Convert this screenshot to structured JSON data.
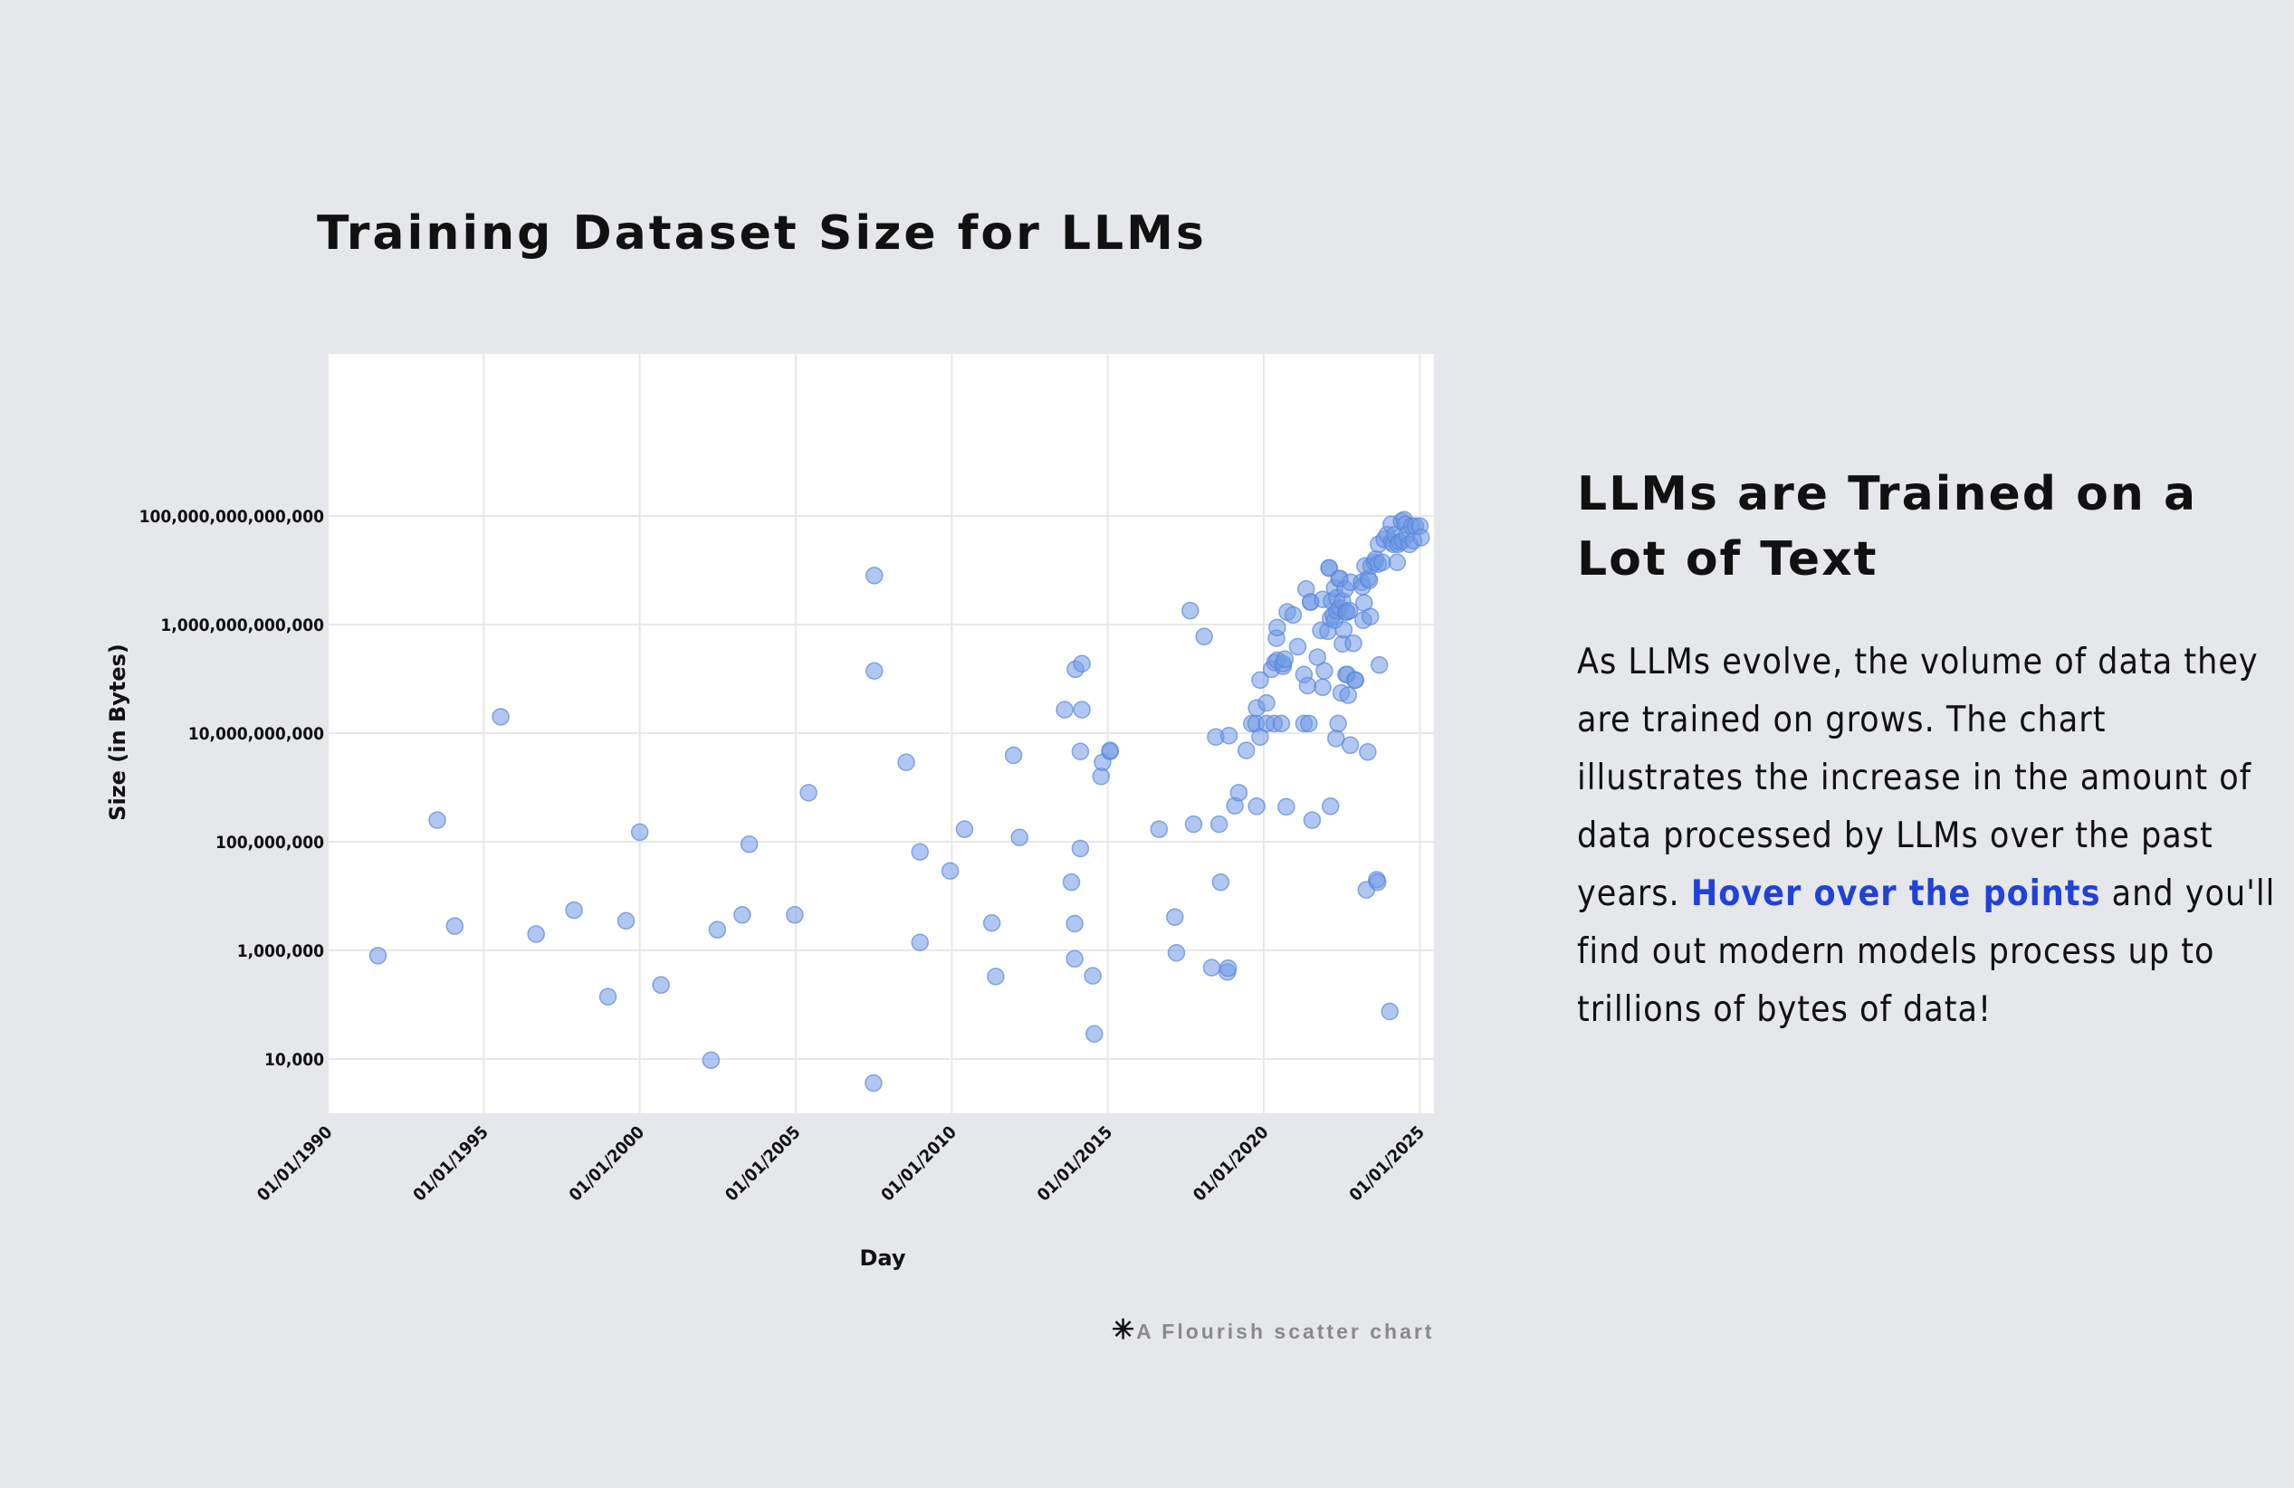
{
  "chart_data": {
    "type": "scatter",
    "title": "Training Dataset Size for LLMs",
    "xlabel": "Day",
    "ylabel": "Size (in Bytes)",
    "y_scale": "log",
    "ylim": [
      1000,
      100000000000000000
    ],
    "xlim": [
      "1990-01-01",
      "2025-06-15"
    ],
    "x_ticks": [
      "1990-01-01",
      "1995-01-01",
      "2000-01-01",
      "2005-01-01",
      "2010-01-01",
      "2015-01-01",
      "2020-01-01",
      "2025-01-01"
    ],
    "x_tick_labels": [
      "01/01/1990",
      "01/01/1995",
      "01/01/2000",
      "01/01/2005",
      "01/01/2010",
      "01/01/2015",
      "01/01/2020",
      "01/01/2025"
    ],
    "y_ticks": [
      10000,
      1000000,
      100000000,
      10000000000,
      1000000000000,
      100000000000000
    ],
    "y_tick_labels": [
      "10,000",
      "1,000,000",
      "100,000,000",
      "10,000,000,000",
      "1,000,000,000,000",
      "100,000,000,000,000"
    ],
    "grid": true,
    "point_color": "#6f9ae6",
    "points": [
      {
        "x": "1991-08-12",
        "y": 800000
      },
      {
        "x": "1993-07-06",
        "y": 250000000
      },
      {
        "x": "1994-01-27",
        "y": 2800000
      },
      {
        "x": "1995-07-19",
        "y": 20000000000
      },
      {
        "x": "1996-09-05",
        "y": 2000000
      },
      {
        "x": "1997-11-23",
        "y": 5500000
      },
      {
        "x": "1998-12-25",
        "y": 140000
      },
      {
        "x": "1999-07-25",
        "y": 3500000
      },
      {
        "x": "2000-01-01",
        "y": 150000000
      },
      {
        "x": "2000-09-06",
        "y": 230000
      },
      {
        "x": "2002-04-15",
        "y": 9500
      },
      {
        "x": "2002-06-28",
        "y": 2400000
      },
      {
        "x": "2003-04-15",
        "y": 4500000
      },
      {
        "x": "2003-07-06",
        "y": 90000000
      },
      {
        "x": "2004-12-20",
        "y": 4500000
      },
      {
        "x": "2005-05-30",
        "y": 800000000
      },
      {
        "x": "2007-06-30",
        "y": 3600
      },
      {
        "x": "2007-07-09",
        "y": 8000000000000
      },
      {
        "x": "2007-07-09",
        "y": 140000000000
      },
      {
        "x": "2008-07-17",
        "y": 2900000000
      },
      {
        "x": "2008-12-25",
        "y": 1400000
      },
      {
        "x": "2008-12-25",
        "y": 65000000
      },
      {
        "x": "2009-12-13",
        "y": 29000000
      },
      {
        "x": "2010-05-30",
        "y": 170000000
      },
      {
        "x": "2011-04-15",
        "y": 3200000
      },
      {
        "x": "2011-05-30",
        "y": 330000
      },
      {
        "x": "2011-12-25",
        "y": 3900000000
      },
      {
        "x": "2012-03-04",
        "y": 120000000
      },
      {
        "x": "2013-08-14",
        "y": 27000000000
      },
      {
        "x": "2013-11-01",
        "y": 18000000
      },
      {
        "x": "2013-12-09",
        "y": 700000
      },
      {
        "x": "2013-12-09",
        "y": 3100000
      },
      {
        "x": "2013-12-18",
        "y": 150000000000
      },
      {
        "x": "2014-02-14",
        "y": 75000000
      },
      {
        "x": "2014-02-14",
        "y": 4600000000
      },
      {
        "x": "2014-03-04",
        "y": 27000000000
      },
      {
        "x": "2014-03-04",
        "y": 190000000000
      },
      {
        "x": "2014-07-09",
        "y": 340000
      },
      {
        "x": "2014-07-27",
        "y": 29000
      },
      {
        "x": "2014-10-14",
        "y": 1600000000
      },
      {
        "x": "2014-11-01",
        "y": 2900000000
      },
      {
        "x": "2015-01-27",
        "y": 4600000000
      },
      {
        "x": "2015-01-27",
        "y": 4800000000
      },
      {
        "x": "2016-08-23",
        "y": 170000000
      },
      {
        "x": "2017-02-24",
        "y": 4100000
      },
      {
        "x": "2017-03-14",
        "y": 900000
      },
      {
        "x": "2017-08-23",
        "y": 1800000000000
      },
      {
        "x": "2017-10-01",
        "y": 210000000
      },
      {
        "x": "2018-02-02",
        "y": 600000000000
      },
      {
        "x": "2018-05-01",
        "y": 480000
      },
      {
        "x": "2018-06-18",
        "y": 8500000000
      },
      {
        "x": "2018-07-27",
        "y": 210000000
      },
      {
        "x": "2018-08-14",
        "y": 18000000
      },
      {
        "x": "2018-11-01",
        "y": 400000
      },
      {
        "x": "2018-11-10",
        "y": 470000
      },
      {
        "x": "2018-11-19",
        "y": 9000000000
      },
      {
        "x": "2019-01-27",
        "y": 460000000
      },
      {
        "x": "2019-03-14",
        "y": 800000000
      },
      {
        "x": "2019-06-10",
        "y": 4800000000
      },
      {
        "x": "2019-08-14",
        "y": 15000000000
      },
      {
        "x": "2019-10-01",
        "y": 15000000000
      },
      {
        "x": "2019-10-10",
        "y": 450000000
      },
      {
        "x": "2019-10-10",
        "y": 29000000000
      },
      {
        "x": "2019-11-19",
        "y": 8500000000
      },
      {
        "x": "2019-11-19",
        "y": 95000000000
      },
      {
        "x": "2020-02-02",
        "y": 36000000000
      },
      {
        "x": "2020-02-02",
        "y": 15000000000
      },
      {
        "x": "2020-03-31",
        "y": 150000000000
      },
      {
        "x": "2020-05-01",
        "y": 15000000000
      },
      {
        "x": "2020-05-10",
        "y": 200000000000
      },
      {
        "x": "2020-05-28",
        "y": 560000000000
      },
      {
        "x": "2020-06-06",
        "y": 220000000000
      },
      {
        "x": "2020-06-06",
        "y": 880000000000
      },
      {
        "x": "2020-07-24",
        "y": 15000000000
      },
      {
        "x": "2020-08-14",
        "y": 170000000000
      },
      {
        "x": "2020-08-14",
        "y": 190000000000
      },
      {
        "x": "2020-09-04",
        "y": 230000000000
      },
      {
        "x": "2020-09-20",
        "y": 440000000
      },
      {
        "x": "2020-10-02",
        "y": 1700000000000
      },
      {
        "x": "2020-12-10",
        "y": 1500000000000
      },
      {
        "x": "2021-02-01",
        "y": 390000000000
      },
      {
        "x": "2021-04-15",
        "y": 15000000000
      },
      {
        "x": "2021-04-15",
        "y": 120000000000
      },
      {
        "x": "2021-05-10",
        "y": 4500000000000
      },
      {
        "x": "2021-05-28",
        "y": 75000000000
      },
      {
        "x": "2021-06-12",
        "y": 15000000000
      },
      {
        "x": "2021-07-02",
        "y": 2600000000000
      },
      {
        "x": "2021-07-02",
        "y": 2600000000000
      },
      {
        "x": "2021-07-20",
        "y": 250000000
      },
      {
        "x": "2021-09-20",
        "y": 250000000000
      },
      {
        "x": "2021-10-30",
        "y": 780000000000
      },
      {
        "x": "2021-11-20",
        "y": 2900000000000
      },
      {
        "x": "2021-11-20",
        "y": 70000000000
      },
      {
        "x": "2021-12-10",
        "y": 140000000000
      },
      {
        "x": "2022-01-20",
        "y": 750000000000
      },
      {
        "x": "2022-02-03",
        "y": 11000000000000
      },
      {
        "x": "2022-02-03",
        "y": 11000000000000
      },
      {
        "x": "2022-02-20",
        "y": 450000000
      },
      {
        "x": "2022-02-20",
        "y": 1300000000000
      },
      {
        "x": "2022-03-05",
        "y": 2700000000000
      },
      {
        "x": "2022-03-25",
        "y": 1500000000000
      },
      {
        "x": "2022-04-10",
        "y": 4700000000000
      },
      {
        "x": "2022-04-10",
        "y": 1200000000000
      },
      {
        "x": "2022-04-25",
        "y": 8000000000
      },
      {
        "x": "2022-05-05",
        "y": 3100000000000
      },
      {
        "x": "2022-05-05",
        "y": 1800000000000
      },
      {
        "x": "2022-05-20",
        "y": 15000000000
      },
      {
        "x": "2022-05-30",
        "y": 7000000000000
      },
      {
        "x": "2022-06-10",
        "y": 7000000000000
      },
      {
        "x": "2022-06-10",
        "y": 2000000000000
      },
      {
        "x": "2022-06-25",
        "y": 55000000000
      },
      {
        "x": "2022-07-10",
        "y": 2700000000000
      },
      {
        "x": "2022-07-10",
        "y": 440000000000
      },
      {
        "x": "2022-07-25",
        "y": 800000000000
      },
      {
        "x": "2022-08-10",
        "y": 4500000000000
      },
      {
        "x": "2022-08-20",
        "y": 1700000000000
      },
      {
        "x": "2022-08-20",
        "y": 120000000000
      },
      {
        "x": "2022-09-01",
        "y": 1700000000000
      },
      {
        "x": "2022-09-05",
        "y": 120000000000
      },
      {
        "x": "2022-09-15",
        "y": 50000000000
      },
      {
        "x": "2022-10-01",
        "y": 1800000000000
      },
      {
        "x": "2022-10-10",
        "y": 6000000000
      },
      {
        "x": "2022-10-15",
        "y": 6000000000000
      },
      {
        "x": "2022-11-15",
        "y": 450000000000
      },
      {
        "x": "2022-12-01",
        "y": 95000000000
      },
      {
        "x": "2022-12-10",
        "y": 95000000000
      },
      {
        "x": "2023-02-20",
        "y": 6000000000000
      },
      {
        "x": "2023-03-01",
        "y": 5000000000000
      },
      {
        "x": "2023-03-10",
        "y": 1200000000000
      },
      {
        "x": "2023-03-20",
        "y": 2500000000000
      },
      {
        "x": "2023-04-01",
        "y": 12000000000000
      },
      {
        "x": "2023-04-15",
        "y": 13000000
      },
      {
        "x": "2023-05-01",
        "y": 4500000000
      },
      {
        "x": "2023-05-05",
        "y": 7000000000000
      },
      {
        "x": "2023-05-20",
        "y": 6500000000000
      },
      {
        "x": "2023-06-01",
        "y": 1400000000000
      },
      {
        "x": "2023-06-10",
        "y": 12000000000000
      },
      {
        "x": "2023-07-20",
        "y": 14000000000000
      },
      {
        "x": "2023-08-01",
        "y": 16000000000000
      },
      {
        "x": "2023-08-15",
        "y": 20000000
      },
      {
        "x": "2023-08-25",
        "y": 18000000
      },
      {
        "x": "2023-09-01",
        "y": 13000000000000
      },
      {
        "x": "2023-09-05",
        "y": 30000000000000
      },
      {
        "x": "2023-09-15",
        "y": 180000000000
      },
      {
        "x": "2023-10-20",
        "y": 14000000000000
      },
      {
        "x": "2023-11-10",
        "y": 37000000000000
      },
      {
        "x": "2023-12-15",
        "y": 45000000000000
      },
      {
        "x": "2024-01-15",
        "y": 75000
      },
      {
        "x": "2024-02-01",
        "y": 70000000000000
      },
      {
        "x": "2024-02-05",
        "y": 33000000000000
      },
      {
        "x": "2024-02-25",
        "y": 30000000000000
      },
      {
        "x": "2024-03-15",
        "y": 45000000000000
      },
      {
        "x": "2024-04-10",
        "y": 14000000000000
      },
      {
        "x": "2024-04-20",
        "y": 30000000000000
      },
      {
        "x": "2024-05-10",
        "y": 33000000000000
      },
      {
        "x": "2024-06-01",
        "y": 80000000000000
      },
      {
        "x": "2024-06-15",
        "y": 35000000000000
      },
      {
        "x": "2024-07-01",
        "y": 85000000000000
      },
      {
        "x": "2024-07-15",
        "y": 70000000000000
      },
      {
        "x": "2024-08-01",
        "y": 45000000000000
      },
      {
        "x": "2024-09-01",
        "y": 30000000000000
      },
      {
        "x": "2024-10-01",
        "y": 65000000000000
      },
      {
        "x": "2024-10-20",
        "y": 35000000000000
      },
      {
        "x": "2024-11-10",
        "y": 65000000000000
      },
      {
        "x": "2025-01-01",
        "y": 65000000000000
      },
      {
        "x": "2025-01-15",
        "y": 40000000000000
      }
    ]
  },
  "side_panel": {
    "heading": "LLMs are Trained on a Lot of Text",
    "body_before": "As LLMs evolve, the volume of data they are trained on grows. The chart illustrates the increase in the amount of data processed by LLMs over the past years. ",
    "body_highlight": "Hover over the points",
    "body_after": " and you'll find out modern models process up to trillions of bytes of data!",
    "highlight_color": "#2142d6"
  },
  "attribution": {
    "star": "✳",
    "text": "A Flourish scatter chart"
  }
}
